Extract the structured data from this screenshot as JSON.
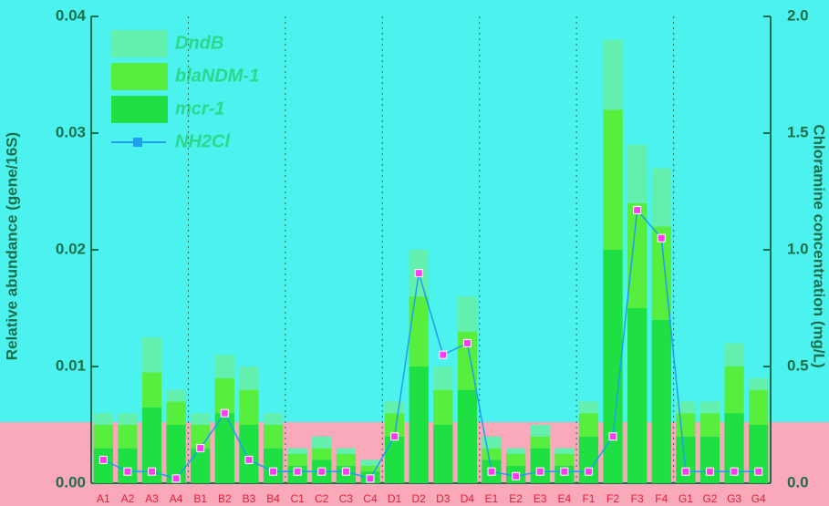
{
  "chart_data": {
    "type": "bar",
    "y_label": "Relative abundance (gene/16S)",
    "y2_label": "Chloramine concentration (mg/L)",
    "categories": [
      "A1",
      "A2",
      "A3",
      "A4",
      "B1",
      "B2",
      "B3",
      "B4",
      "C1",
      "C2",
      "C3",
      "C4",
      "D1",
      "D2",
      "D3",
      "D4",
      "E1",
      "E2",
      "E3",
      "E4",
      "F1",
      "F2",
      "F3",
      "F4",
      "G1",
      "G2",
      "G3",
      "G4"
    ],
    "series": [
      {
        "name": "DndB",
        "color": "#63f0ae",
        "values": [
          0.001,
          0.001,
          0.003,
          0.001,
          0.001,
          0.002,
          0.002,
          0.001,
          0.0005,
          0.001,
          0.0005,
          0.0005,
          0.001,
          0.004,
          0.002,
          0.003,
          0.001,
          0.0005,
          0.001,
          0.0005,
          0.001,
          0.006,
          0.005,
          0.005,
          0.001,
          0.001,
          0.002,
          0.001
        ]
      },
      {
        "name": "blaNDM-1",
        "color": "#58ee3e",
        "values": [
          0.002,
          0.002,
          0.003,
          0.002,
          0.002,
          0.003,
          0.003,
          0.002,
          0.001,
          0.001,
          0.001,
          0.0005,
          0.002,
          0.006,
          0.003,
          0.005,
          0.001,
          0.001,
          0.001,
          0.001,
          0.002,
          0.012,
          0.009,
          0.008,
          0.002,
          0.002,
          0.004,
          0.003
        ]
      },
      {
        "name": "mcr-1",
        "color": "#1fe043",
        "values": [
          0.003,
          0.003,
          0.0065,
          0.005,
          0.003,
          0.006,
          0.005,
          0.003,
          0.0015,
          0.002,
          0.0015,
          0.001,
          0.004,
          0.01,
          0.005,
          0.008,
          0.002,
          0.0015,
          0.003,
          0.0015,
          0.004,
          0.02,
          0.015,
          0.014,
          0.004,
          0.004,
          0.006,
          0.005
        ]
      },
      {
        "name": "NH2Cl",
        "color": "#1e9ef0",
        "marker_color": "#ff3cf0",
        "axis": "y2",
        "values": [
          0.1,
          0.05,
          0.05,
          0.02,
          0.15,
          0.3,
          0.1,
          0.05,
          0.05,
          0.05,
          0.05,
          0.02,
          0.2,
          0.9,
          0.55,
          0.6,
          0.05,
          0.03,
          0.05,
          0.05,
          0.05,
          0.2,
          1.17,
          1.05,
          0.05,
          0.05,
          0.05,
          0.05
        ]
      }
    ],
    "ylim": [
      0,
      0.04
    ],
    "yticks": [
      {
        "value": 0,
        "label": "0.00"
      },
      0.01,
      0.02,
      0.03,
      0.04
    ],
    "y2lim": [
      0,
      2
    ],
    "y2ticks": [
      {
        "value": 0,
        "label": "0.0"
      },
      0.5,
      {
        "value": 1,
        "label": "1.0"
      },
      1.5,
      {
        "value": 2,
        "label": "2.0"
      }
    ]
  }
}
